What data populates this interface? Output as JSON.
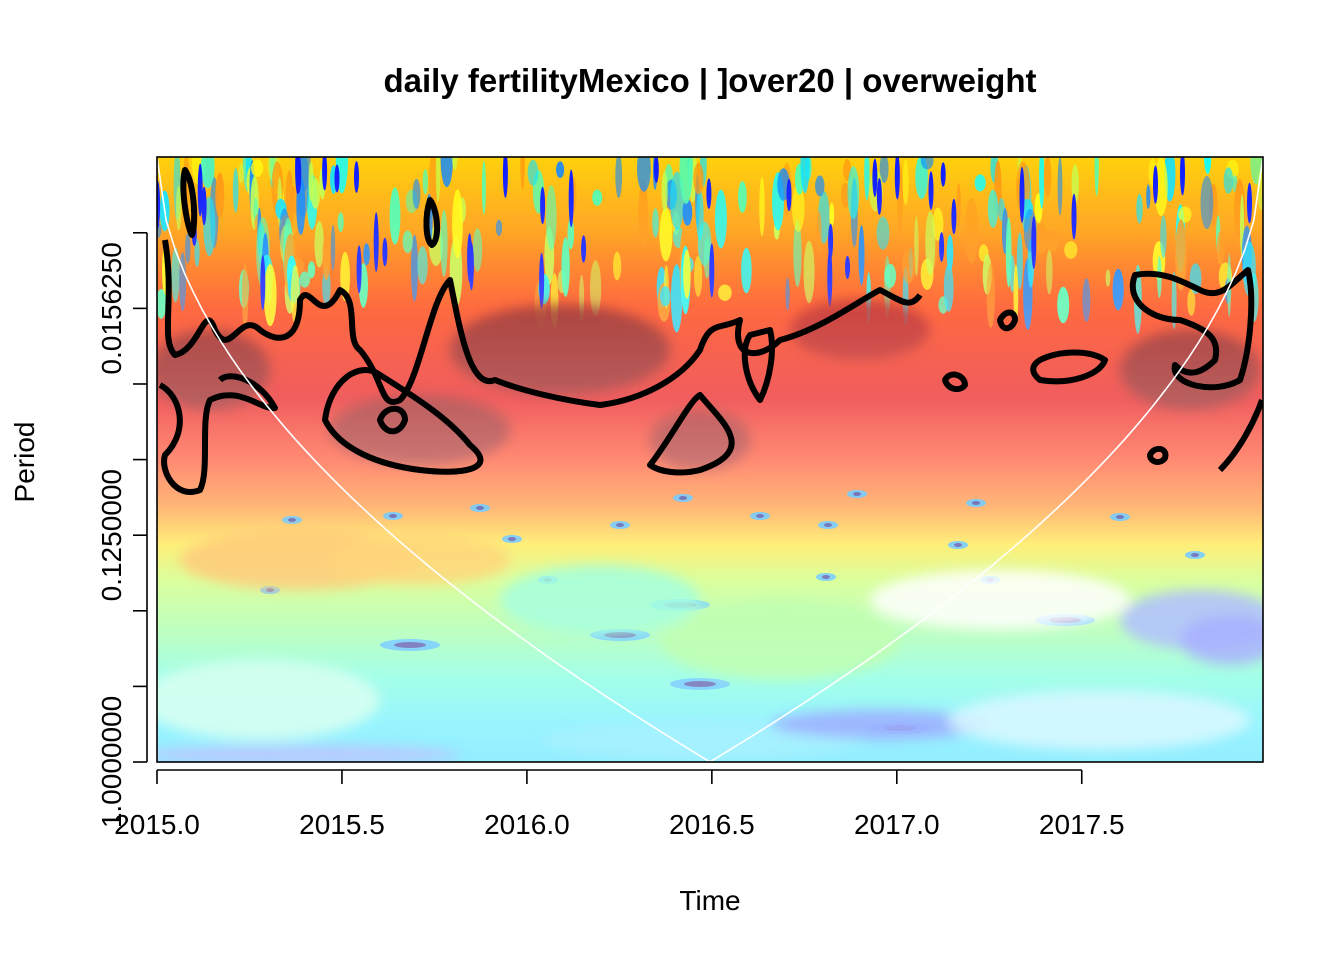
{
  "chart_data": {
    "type": "heatmap",
    "title": "daily fertilityMexico | ]over20 | overweight",
    "xlabel": "Time",
    "ylabel": "Period",
    "xlim": [
      2015.0,
      2017.99
    ],
    "x_ticks": [
      2015.0,
      2015.5,
      2016.0,
      2016.5,
      2017.0,
      2017.5
    ],
    "x_tick_labels": [
      "2015.0",
      "2015.5",
      "2016.0",
      "2016.5",
      "2017.0",
      "2017.5"
    ],
    "y_scale": "log2",
    "ylim": [
      0.0039,
      1.0
    ],
    "y_ticks": [
      1.0,
      0.5,
      0.25,
      0.125,
      0.0625,
      0.03125,
      0.015625,
      0.0078125
    ],
    "y_tick_labels": [
      "1.0000000",
      "",
      "",
      "0.1250000",
      "",
      "",
      "0.0156250",
      ""
    ],
    "colormap": [
      "#00007f",
      "#0000ff",
      "#007fff",
      "#00ffff",
      "#7fff7f",
      "#ffff00",
      "#ff7f00",
      "#ff0000",
      "#7f0000"
    ],
    "cone_of_influence": true,
    "significance_contours": true
  }
}
